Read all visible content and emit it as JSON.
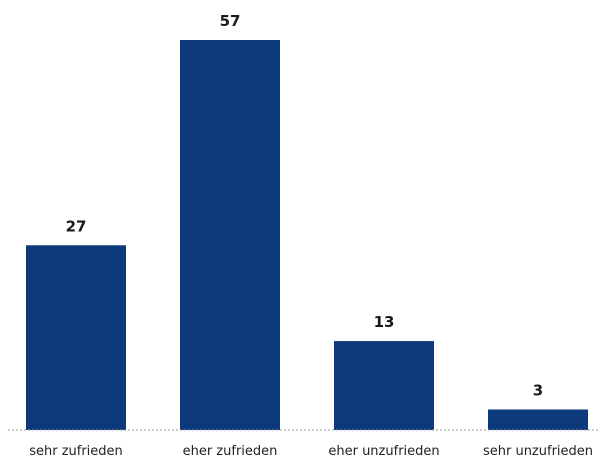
{
  "chart_data": {
    "type": "bar",
    "categories": [
      "sehr zufrieden",
      "eher zufrieden",
      "eher unzufrieden",
      "sehr unzufrieden"
    ],
    "values": [
      27,
      57,
      13,
      3
    ],
    "title": "",
    "xlabel": "",
    "ylabel": "",
    "ylim": [
      0,
      57
    ],
    "grid": false,
    "legend": "none",
    "data_labels": true
  },
  "colors": {
    "bar": "#0d3a7a",
    "baseline": "#9a9a9a"
  }
}
